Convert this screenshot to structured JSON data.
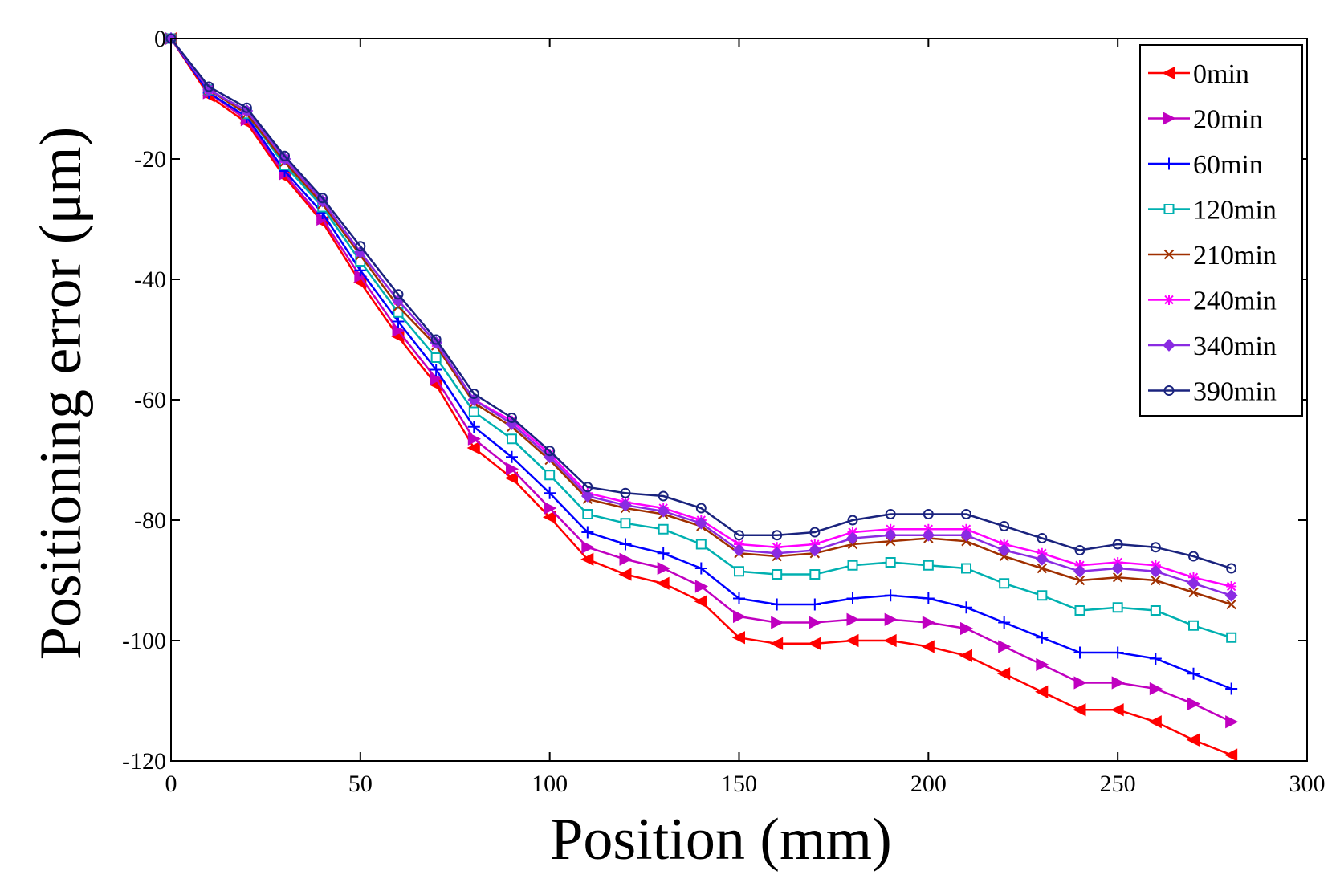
{
  "chart_data": {
    "type": "line",
    "title": "",
    "xlabel": "Position (mm)",
    "ylabel": "Positioning error (μm)",
    "xlim": [
      0,
      300
    ],
    "ylim": [
      -120,
      0
    ],
    "xticks": [
      0,
      50,
      100,
      150,
      200,
      250,
      300
    ],
    "yticks": [
      0,
      -20,
      -40,
      -60,
      -80,
      -100,
      -120
    ],
    "xtick_labels": [
      "0",
      "50",
      "100",
      "150",
      "200",
      "250",
      "300"
    ],
    "ytick_labels": [
      "0",
      "-20",
      "-40",
      "-60",
      "-80",
      "-100",
      "-120"
    ],
    "grid": false,
    "legend_position": "top-right",
    "x": [
      0,
      10,
      20,
      30,
      40,
      50,
      60,
      70,
      80,
      90,
      100,
      110,
      120,
      130,
      140,
      150,
      160,
      170,
      180,
      190,
      200,
      210,
      220,
      230,
      240,
      250,
      260,
      270,
      280
    ],
    "series": [
      {
        "name": "0min",
        "color": "#ff0000",
        "marker": "triangle-left",
        "values": [
          0,
          -9.5,
          -14,
          -23,
          -30.5,
          -40.5,
          -49.5,
          -57.5,
          -68,
          -73,
          -79.5,
          -86.5,
          -89,
          -90.5,
          -93.5,
          -99.5,
          -100.5,
          -100.5,
          -100,
          -100,
          -101,
          -102.5,
          -105.5,
          -108.5,
          -111.5,
          -111.5,
          -113.5,
          -116.5,
          -119
        ]
      },
      {
        "name": "20min",
        "color": "#c000c0",
        "marker": "triangle-right",
        "values": [
          0,
          -9,
          -13.5,
          -22.5,
          -30,
          -39.5,
          -48.5,
          -56.5,
          -66.5,
          -71.5,
          -78,
          -84.5,
          -86.5,
          -88,
          -91,
          -96,
          -97,
          -97,
          -96.5,
          -96.5,
          -97,
          -98,
          -101,
          -104,
          -107,
          -107,
          -108,
          -110.5,
          -113.5
        ]
      },
      {
        "name": "60min",
        "color": "#0000ff",
        "marker": "plus",
        "values": [
          0,
          -9,
          -13,
          -22,
          -29,
          -38.5,
          -47,
          -55,
          -64.5,
          -69.5,
          -75.5,
          -82,
          -84,
          -85.5,
          -88,
          -93,
          -94,
          -94,
          -93,
          -92.5,
          -93,
          -94.5,
          -97,
          -99.5,
          -102,
          -102,
          -103,
          -105.5,
          -108
        ]
      },
      {
        "name": "120min",
        "color": "#00b0b0",
        "marker": "square",
        "values": [
          0,
          -8.5,
          -12.5,
          -21,
          -28,
          -37,
          -45.5,
          -53,
          -62,
          -66.5,
          -72.5,
          -79,
          -80.5,
          -81.5,
          -84,
          -88.5,
          -89,
          -89,
          -87.5,
          -87,
          -87.5,
          -88,
          -90.5,
          -92.5,
          -95,
          -94.5,
          -95,
          -97.5,
          -99.5
        ]
      },
      {
        "name": "210min",
        "color": "#a03000",
        "marker": "cross",
        "values": [
          0,
          -8.5,
          -12.5,
          -20.5,
          -27.5,
          -36,
          -44.5,
          -51,
          -60.5,
          -64.5,
          -70,
          -76.5,
          -78,
          -79,
          -81,
          -85.5,
          -86,
          -85.5,
          -84,
          -83.5,
          -83,
          -83.5,
          -86,
          -88,
          -90,
          -89.5,
          -90,
          -92,
          -94
        ]
      },
      {
        "name": "240min",
        "color": "#ff00ff",
        "marker": "asterisk",
        "values": [
          0,
          -8.5,
          -12,
          -20,
          -27,
          -35.5,
          -43.5,
          -50.5,
          -60,
          -63.5,
          -69,
          -75.5,
          -77,
          -78,
          -80,
          -84,
          -84.5,
          -84,
          -82,
          -81.5,
          -81.5,
          -81.5,
          -84,
          -85.5,
          -87.5,
          -87,
          -87.5,
          -89.5,
          -91
        ]
      },
      {
        "name": "340min",
        "color": "#8a2be2",
        "marker": "diamond",
        "values": [
          0,
          -8.5,
          -12,
          -20,
          -27,
          -35.5,
          -43.5,
          -50.5,
          -60,
          -64,
          -69.5,
          -76,
          -77.5,
          -78.5,
          -80.5,
          -85,
          -85.5,
          -85,
          -83,
          -82.5,
          -82.5,
          -82.5,
          -85,
          -86.5,
          -88.5,
          -88,
          -88.5,
          -90.5,
          -92.5
        ]
      },
      {
        "name": "390min",
        "color": "#1a237e",
        "marker": "circle",
        "values": [
          0,
          -8,
          -11.5,
          -19.5,
          -26.5,
          -34.5,
          -42.5,
          -50,
          -59,
          -63,
          -68.5,
          -74.5,
          -75.5,
          -76,
          -78,
          -82.5,
          -82.5,
          -82,
          -80,
          -79,
          -79,
          -79,
          -81,
          -83,
          -85,
          -84,
          -84.5,
          -86,
          -88
        ]
      }
    ]
  }
}
